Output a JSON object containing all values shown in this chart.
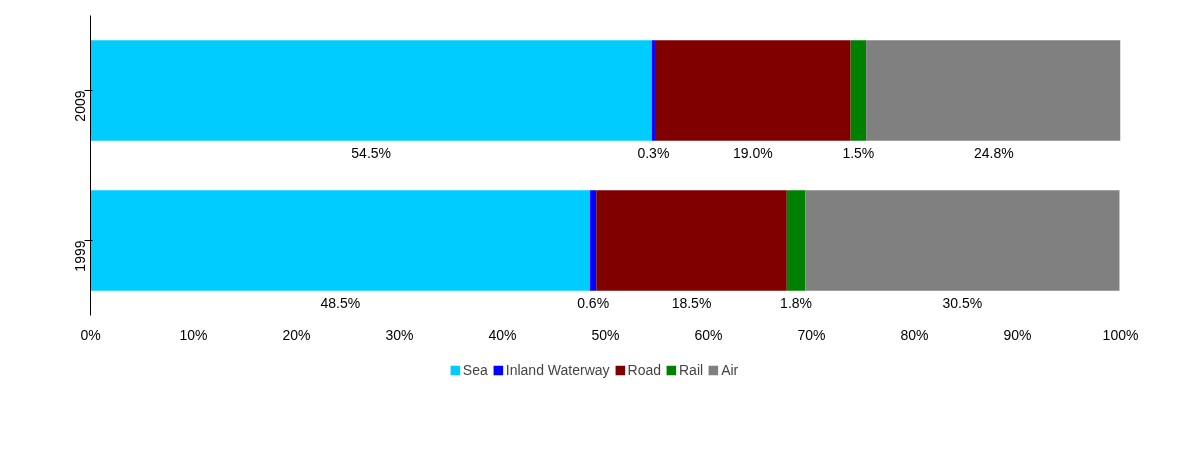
{
  "chart_data": {
    "type": "bar",
    "orientation": "horizontal",
    "stacked": true,
    "categories": [
      "2009",
      "1999"
    ],
    "series": [
      {
        "name": "Sea",
        "color": "#00ccff",
        "values": [
          54.5,
          48.5
        ],
        "value_labels": [
          "54.5%",
          "48.5%"
        ]
      },
      {
        "name": "Inland Waterway",
        "color": "#0000ff",
        "values": [
          0.3,
          0.6
        ],
        "value_labels": [
          "0.3%",
          "0.6%"
        ]
      },
      {
        "name": "Road",
        "color": "#800000",
        "values": [
          19.0,
          18.5
        ],
        "value_labels": [
          "19.0%",
          "18.5%"
        ]
      },
      {
        "name": "Rail",
        "color": "#008000",
        "values": [
          1.5,
          1.8
        ],
        "value_labels": [
          "1.5%",
          "1.8%"
        ]
      },
      {
        "name": "Air",
        "color": "#808080",
        "values": [
          24.8,
          30.5
        ],
        "value_labels": [
          "24.8%",
          "30.5%"
        ]
      }
    ],
    "xlim": [
      0,
      100
    ],
    "xticks": [
      {
        "value": 0,
        "label": "0%"
      },
      {
        "value": 10,
        "label": "10%"
      },
      {
        "value": 20,
        "label": "20%"
      },
      {
        "value": 30,
        "label": "30%"
      },
      {
        "value": 40,
        "label": "40%"
      },
      {
        "value": 50,
        "label": "50%"
      },
      {
        "value": 60,
        "label": "60%"
      },
      {
        "value": 70,
        "label": "70%"
      },
      {
        "value": 80,
        "label": "80%"
      },
      {
        "value": 90,
        "label": "90%"
      },
      {
        "value": 100,
        "label": "100%"
      }
    ],
    "grid": false,
    "legend": "bottom"
  }
}
